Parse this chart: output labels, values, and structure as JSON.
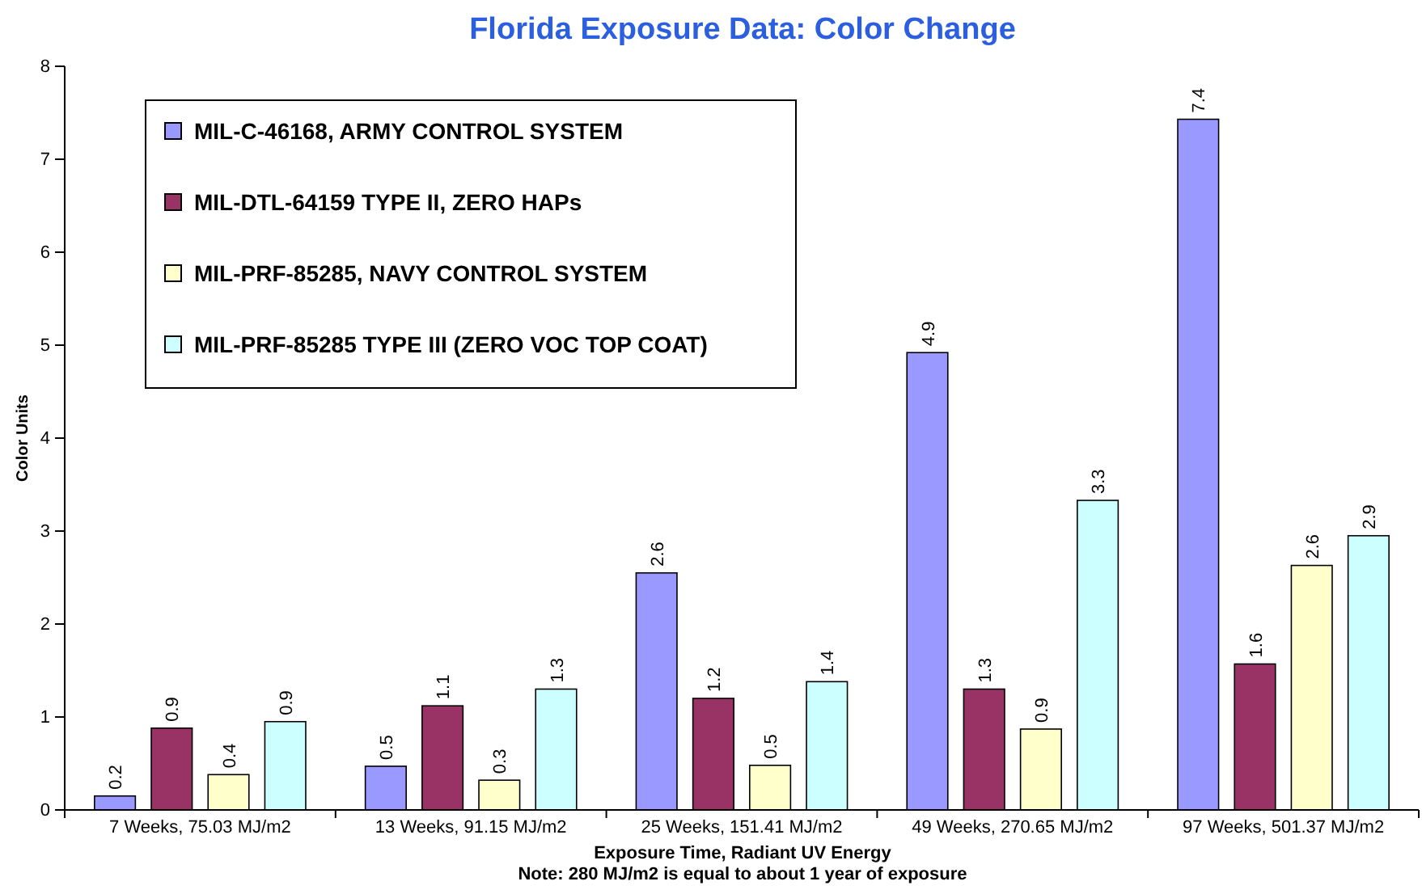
{
  "chart_data": {
    "type": "bar",
    "title": "Florida Exposure Data: Color Change",
    "xlabel": "Exposure Time, Radiant UV Energy",
    "ylabel": "Color Units",
    "annotations": [
      "Note: 280 MJ/m2 is equal to about 1 year of exposure"
    ],
    "categories": [
      "7 Weeks, 75.03 MJ/m2",
      "13 Weeks, 91.15 MJ/m2",
      "25 Weeks, 151.41 MJ/m2",
      "49 Weeks, 270.65 MJ/m2",
      "97 Weeks, 501.37 MJ/m2"
    ],
    "series": [
      {
        "name": "MIL-C-46168, ARMY CONTROL SYSTEM",
        "color": "#9999ff",
        "values": [
          0.15,
          0.47,
          2.55,
          4.92,
          7.43
        ],
        "value_labels": [
          "0.2",
          "0.5",
          "2.6",
          "4.9",
          "7.4"
        ]
      },
      {
        "name": "MIL-DTL-64159 TYPE II, ZERO HAPs",
        "color": "#993366",
        "values": [
          0.88,
          1.12,
          1.2,
          1.3,
          1.57
        ],
        "value_labels": [
          "0.9",
          "1.1",
          "1.2",
          "1.3",
          "1.6"
        ]
      },
      {
        "name": "MIL-PRF-85285, NAVY CONTROL SYSTEM",
        "color": "#ffffcc",
        "values": [
          0.38,
          0.32,
          0.48,
          0.87,
          2.63
        ],
        "value_labels": [
          "0.4",
          "0.3",
          "0.5",
          "0.9",
          "2.6"
        ]
      },
      {
        "name": "MIL-PRF-85285 TYPE III (ZERO VOC TOP COAT)",
        "color": "#ccffff",
        "values": [
          0.95,
          1.3,
          1.38,
          3.33,
          2.95
        ],
        "value_labels": [
          "0.9",
          "1.3",
          "1.4",
          "3.3",
          "2.9"
        ]
      }
    ],
    "ylim": [
      0,
      8
    ],
    "yticks": [
      0,
      1,
      2,
      3,
      4,
      5,
      6,
      7,
      8
    ],
    "grid": false,
    "legend": "top left"
  }
}
